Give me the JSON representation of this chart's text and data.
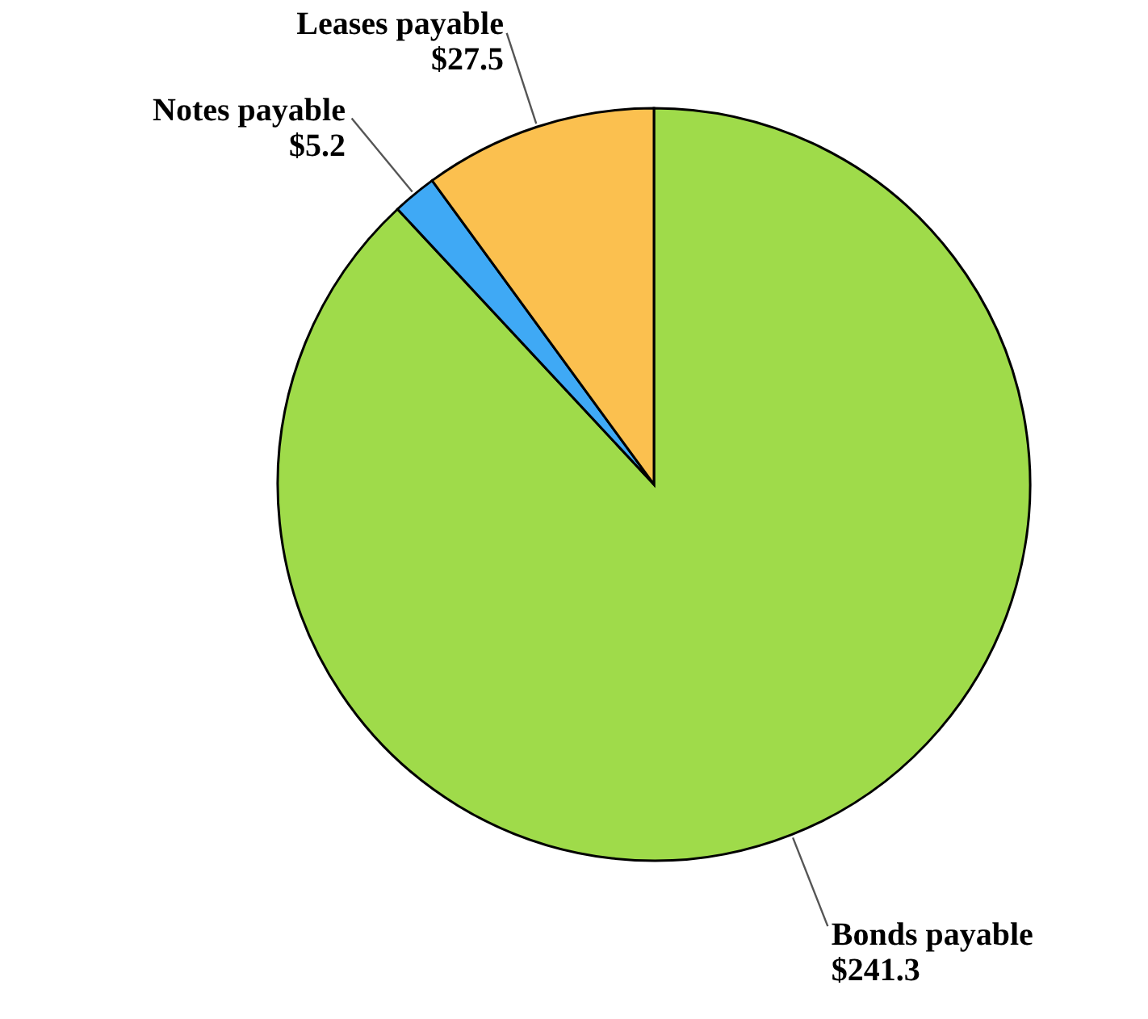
{
  "chart_data": {
    "type": "pie",
    "categories": [
      "Bonds payable",
      "Notes payable",
      "Leases payable"
    ],
    "values": [
      241.3,
      5.2,
      27.5
    ],
    "value_labels": [
      "$241.3",
      "$5.2",
      "$27.5"
    ],
    "colors": [
      "#9fdb4a",
      "#3fa9f5",
      "#fbc04f"
    ]
  }
}
